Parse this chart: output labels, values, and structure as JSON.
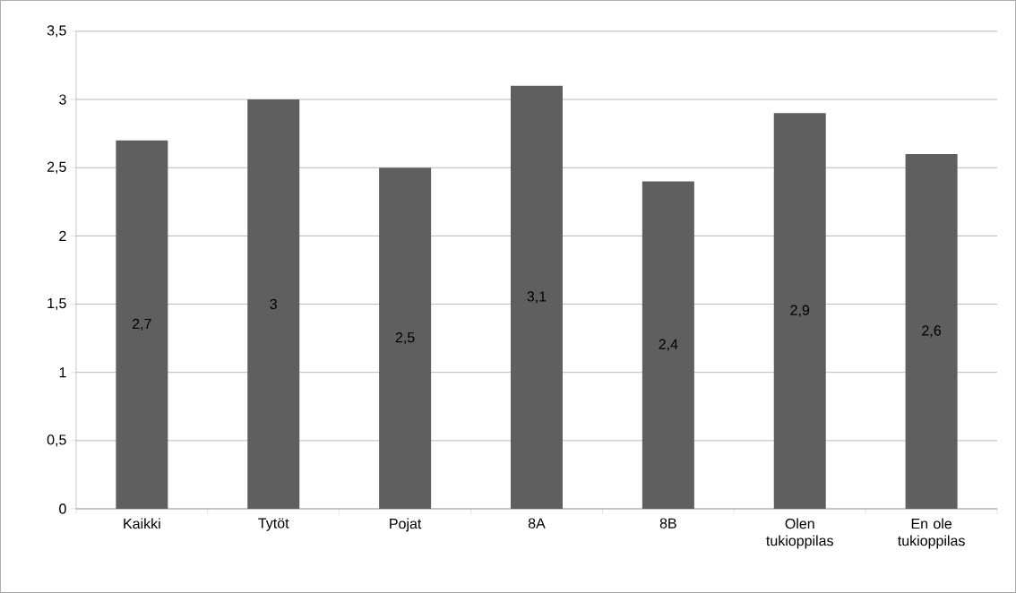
{
  "chart_data": {
    "type": "bar",
    "categories": [
      "Kaikki",
      "Tytöt",
      "Pojat",
      "8A",
      "8B",
      "Olen tukioppilas",
      "En ole tukioppilas"
    ],
    "values": [
      2.7,
      3,
      2.5,
      3.1,
      2.4,
      2.9,
      2.6
    ],
    "value_labels": [
      "2,7",
      "3",
      "2,5",
      "3,1",
      "2,4",
      "2,9",
      "2,6"
    ],
    "color": "#5f5f5f",
    "ylim": [
      0,
      3.5
    ],
    "yticks": [
      0,
      {
        "value": 0.5,
        "label": "0,5"
      },
      1,
      {
        "value": 1.5,
        "label": "1,5"
      },
      2,
      {
        "value": 2.5,
        "label": "2,5"
      },
      3,
      {
        "value": 3.5,
        "label": "3,5"
      }
    ],
    "grid": "y"
  }
}
